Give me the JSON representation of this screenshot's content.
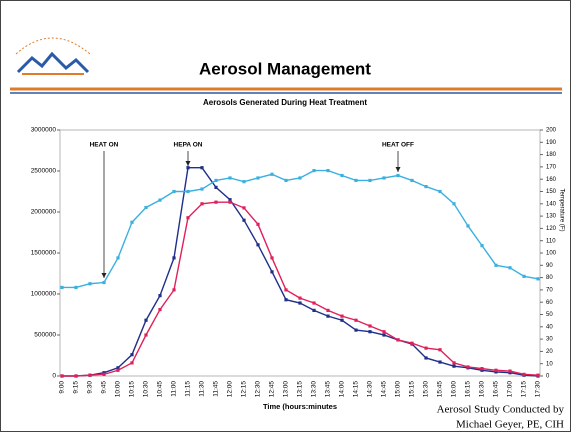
{
  "header": {
    "title": "Aerosol Management"
  },
  "credit": [
    "Aerosol Study Conducted by",
    "Michael Geyer, PE, CIH"
  ],
  "chart_data": {
    "type": "line",
    "title": "Aerosols Generated During Heat Treatment",
    "x_label": "Time (hours:minutes",
    "y2_label": "Temperature (F)",
    "categories": [
      "9:00",
      "9:15",
      "9:30",
      "9:45",
      "10:00",
      "10:15",
      "10:30",
      "10:45",
      "11:00",
      "11:15",
      "11:30",
      "11:45",
      "12:00",
      "12:15",
      "12:30",
      "12:45",
      "13:00",
      "13:15",
      "13:30",
      "13:45",
      "14:00",
      "14:15",
      "14:30",
      "14:45",
      "15:00",
      "15:15",
      "15:30",
      "15:45",
      "16:00",
      "16:15",
      "16:30",
      "16:45",
      "17:00",
      "17:15",
      "17:30"
    ],
    "series": [
      {
        "color": "#1f2f8a",
        "values": [
          0,
          0,
          10000,
          40000,
          100000,
          260000,
          680000,
          980000,
          1440000,
          2540000,
          2540000,
          2300000,
          2150000,
          1900000,
          1600000,
          1270000,
          930000,
          890000,
          800000,
          730000,
          680000,
          560000,
          540000,
          500000,
          440000,
          390000,
          220000,
          170000,
          120000,
          100000,
          70000,
          50000,
          40000,
          10000,
          0
        ]
      },
      {
        "color": "#e0205a",
        "values": [
          0,
          0,
          10000,
          20000,
          70000,
          160000,
          500000,
          810000,
          1050000,
          1930000,
          2100000,
          2120000,
          2120000,
          2050000,
          1850000,
          1440000,
          1050000,
          950000,
          890000,
          800000,
          730000,
          680000,
          610000,
          540000,
          440000,
          400000,
          340000,
          320000,
          160000,
          110000,
          90000,
          70000,
          60000,
          20000,
          10000
        ]
      },
      {
        "color": "#3ab0e0",
        "axis": "y2",
        "values": [
          72,
          72,
          75,
          76,
          96,
          125,
          137,
          143,
          150,
          150,
          152,
          159,
          161,
          158,
          161,
          164,
          159,
          161,
          167,
          167,
          163,
          159,
          159,
          161,
          163,
          159,
          154,
          150,
          140,
          122,
          106,
          90,
          88,
          81,
          79
        ]
      }
    ],
    "annotations": [
      {
        "text": "HEAT ON",
        "category": "9:45"
      },
      {
        "text": "HEPA  ON",
        "category": "11:15"
      },
      {
        "text": "HEAT OFF",
        "category": "15:00"
      }
    ],
    "ylim": [
      0,
      3000000
    ],
    "yticks": [
      0,
      500000,
      1000000,
      1500000,
      2000000,
      2500000,
      3000000
    ],
    "y2lim": [
      0,
      200
    ],
    "y2ticks": [
      0,
      10,
      20,
      30,
      40,
      50,
      60,
      70,
      80,
      90,
      100,
      110,
      120,
      130,
      140,
      150,
      160,
      170,
      180,
      190,
      200
    ]
  }
}
